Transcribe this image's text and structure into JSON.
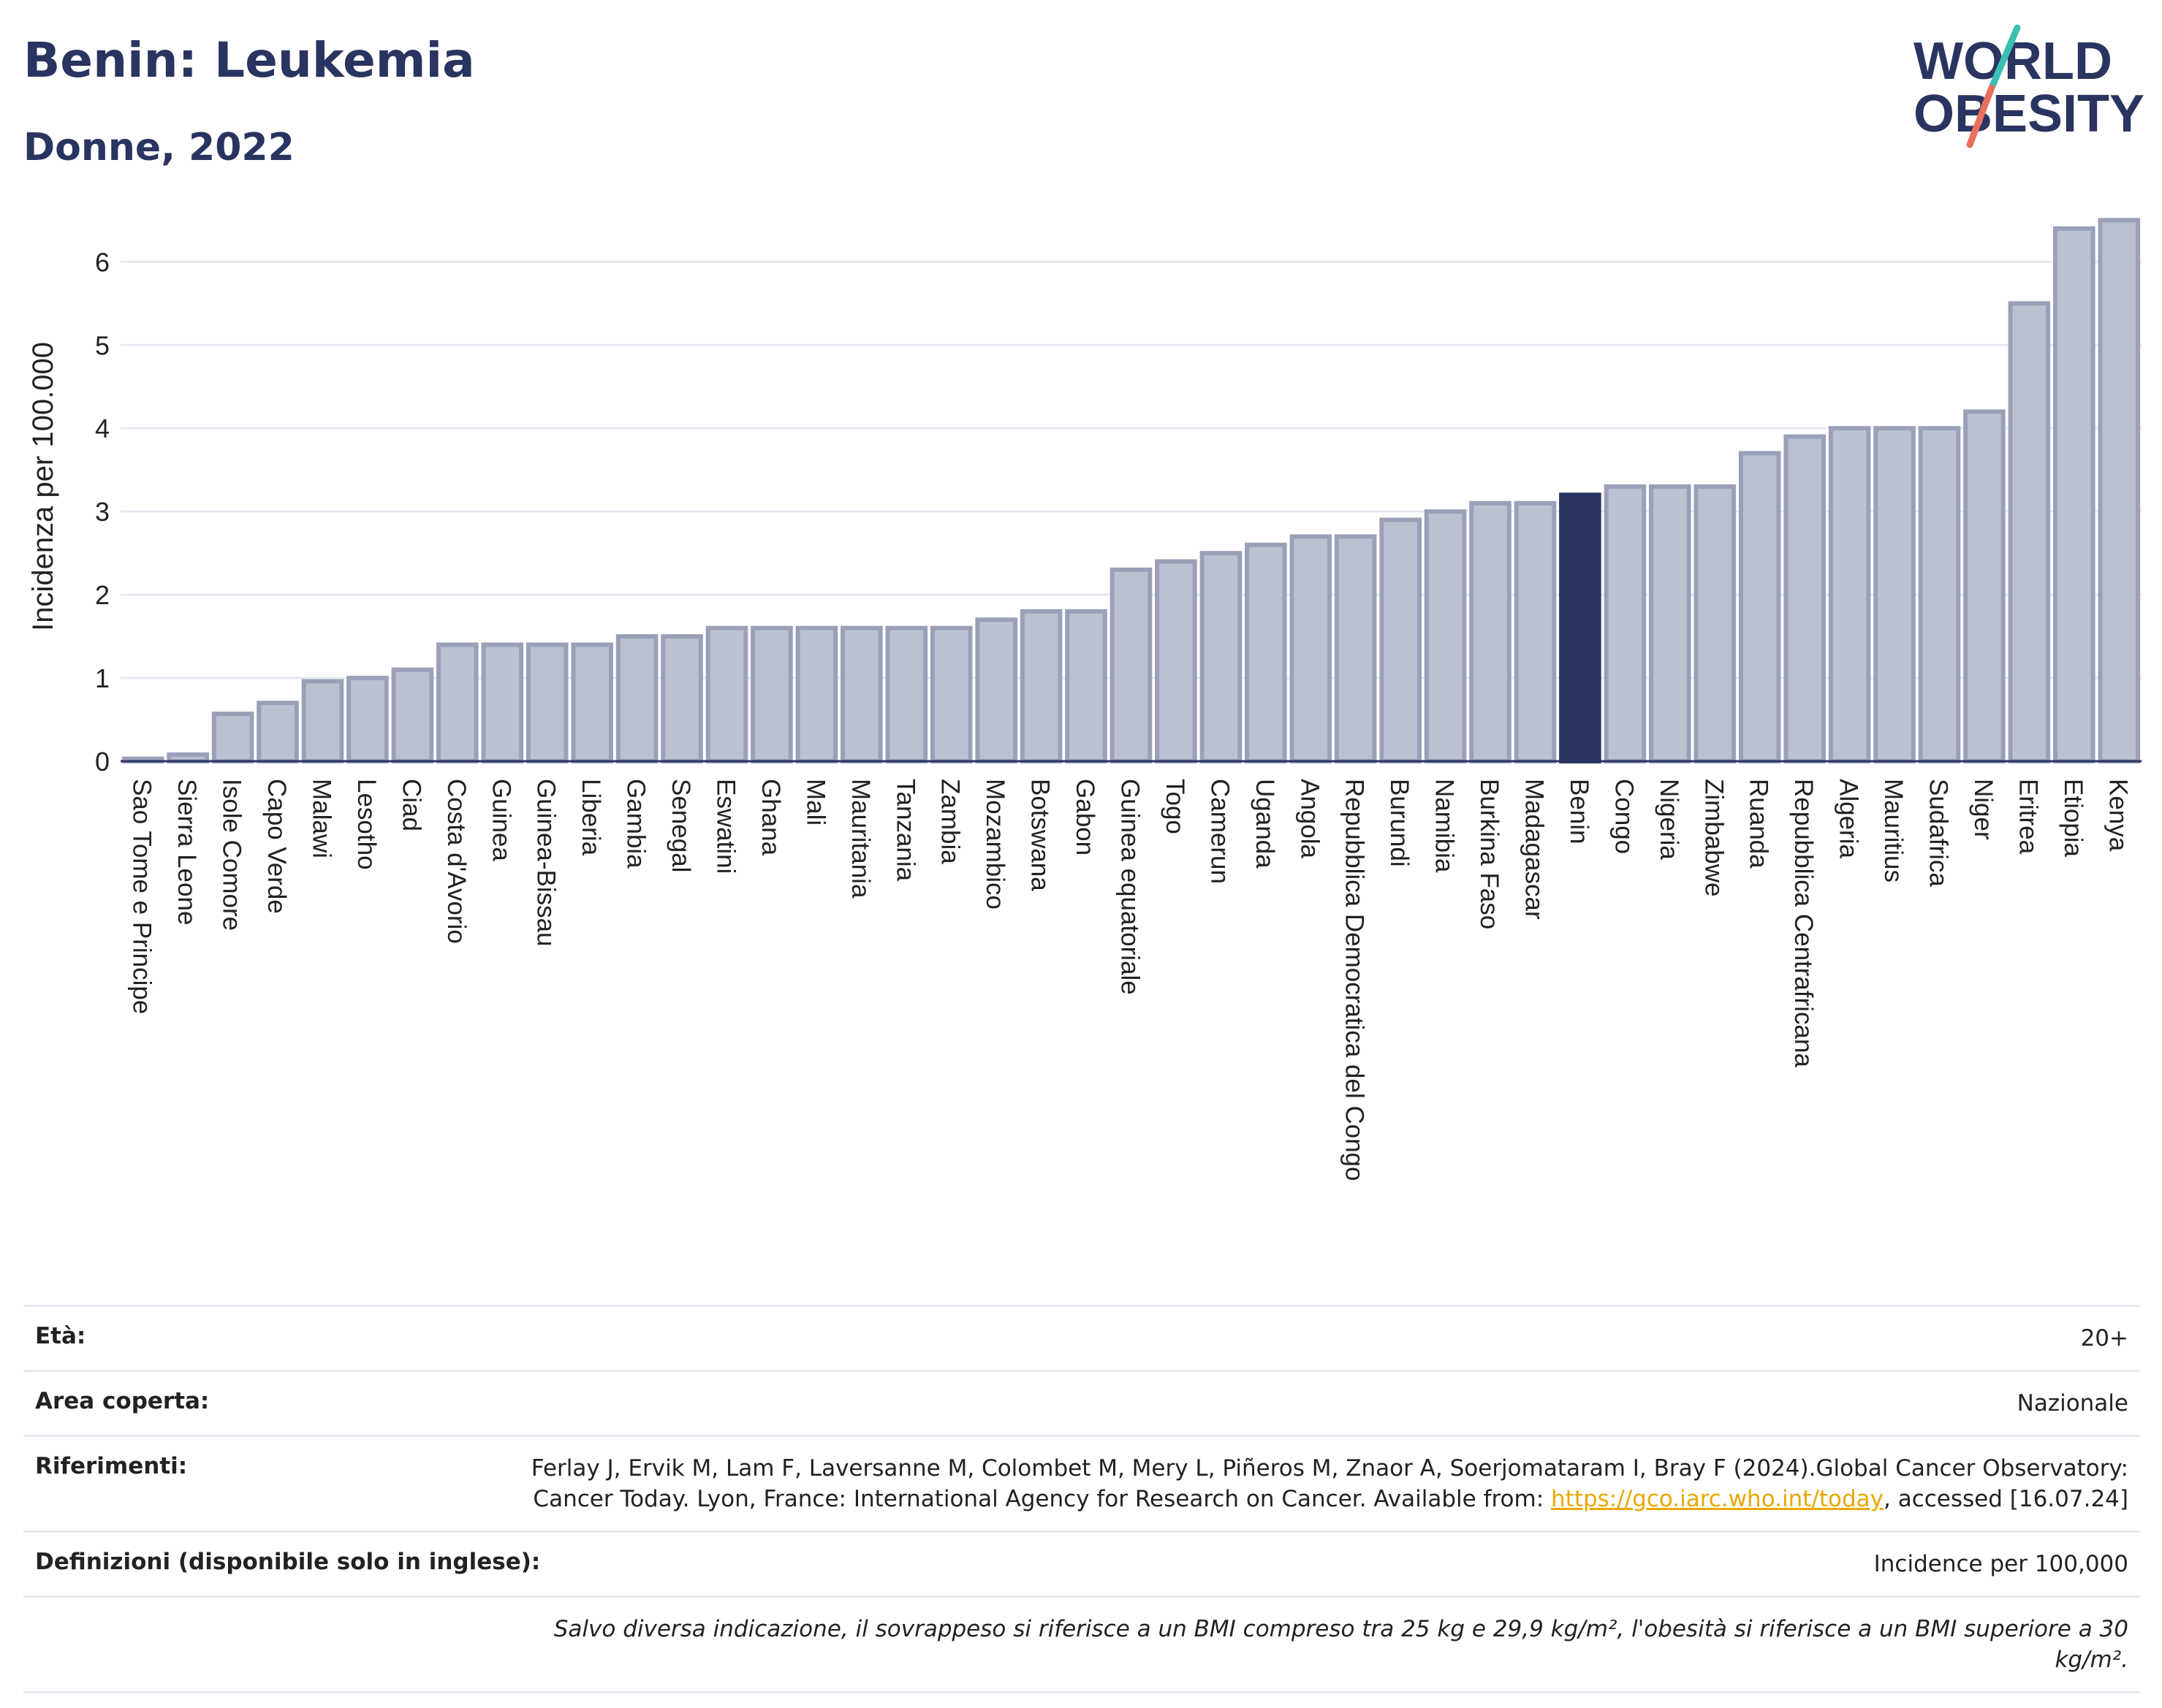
{
  "header": {
    "title": "Benin: Leukemia",
    "subtitle": "Donne, 2022"
  },
  "logo": {
    "line1": "WORLD",
    "line2": "OBESITY"
  },
  "chart_data": {
    "type": "bar",
    "title": "Benin: Leukemia",
    "subtitle": "Donne, 2022",
    "ylabel": "Incidenza per 100.000",
    "xlabel": "",
    "ylim": [
      0,
      6.6
    ],
    "yticks": [
      0,
      1,
      2,
      3,
      4,
      5,
      6
    ],
    "grid": true,
    "highlight": "Benin",
    "colors": {
      "bar": "#bcc1d0",
      "bar_stroke": "#9aa0b8",
      "highlight": "#2a3460",
      "grid": "#e6e9f0",
      "axis": "#2a3460"
    },
    "categories": [
      "Sao Tome e Principe",
      "Sierra Leone",
      "Isole Comore",
      "Capo Verde",
      "Malawi",
      "Lesotho",
      "Ciad",
      "Costa d'Avorio",
      "Guinea",
      "Guinea-Bissau",
      "Liberia",
      "Gambia",
      "Senegal",
      "Eswatini",
      "Ghana",
      "Mali",
      "Mauritania",
      "Tanzania",
      "Zambia",
      "Mozambico",
      "Botswana",
      "Gabon",
      "Guinea equatoriale",
      "Togo",
      "Camerun",
      "Uganda",
      "Angola",
      "Repubblica Democratica del Congo",
      "Burundi",
      "Namibia",
      "Burkina Faso",
      "Madagascar",
      "Benin",
      "Congo",
      "Nigeria",
      "Zimbabwe",
      "Ruanda",
      "Repubblica Centrafricana",
      "Algeria",
      "Mauritius",
      "Sudafrica",
      "Niger",
      "Eritrea",
      "Etiopia",
      "Kenya"
    ],
    "values": [
      0.03,
      0.08,
      0.57,
      0.7,
      0.96,
      1.0,
      1.1,
      1.4,
      1.4,
      1.4,
      1.4,
      1.5,
      1.5,
      1.6,
      1.6,
      1.6,
      1.6,
      1.6,
      1.6,
      1.7,
      1.8,
      1.8,
      2.3,
      2.4,
      2.5,
      2.6,
      2.7,
      2.7,
      2.9,
      3.0,
      3.1,
      3.1,
      3.2,
      3.3,
      3.3,
      3.3,
      3.7,
      3.9,
      4.0,
      4.0,
      4.0,
      4.2,
      5.5,
      6.4,
      6.5
    ]
  },
  "meta": {
    "age_label": "Età:",
    "age_value": "20+",
    "area_label": "Area coperta:",
    "area_value": "Nazionale",
    "refs_label": "Riferimenti:",
    "refs_text": "Ferlay J, Ervik M, Lam F, Laversanne M, Colombet M, Mery L, Piñeros M, Znaor A, Soerjomataram I, Bray F (2024).Global Cancer Observatory: Cancer Today. Lyon, France: International Agency for Research on Cancer. Available from: ",
    "refs_link": "https://gco.iarc.who.int/today",
    "refs_after": ", accessed [16.07.24]",
    "defs_label": "Definizioni (disponibile solo in inglese):",
    "defs_value": "Incidence per 100,000",
    "note": "Salvo diversa indicazione, il sovrappeso si riferisce a un BMI compreso tra 25 kg e 29,9 kg/m², l'obesità si riferisce a un BMI superiore a 30 kg/m²."
  }
}
